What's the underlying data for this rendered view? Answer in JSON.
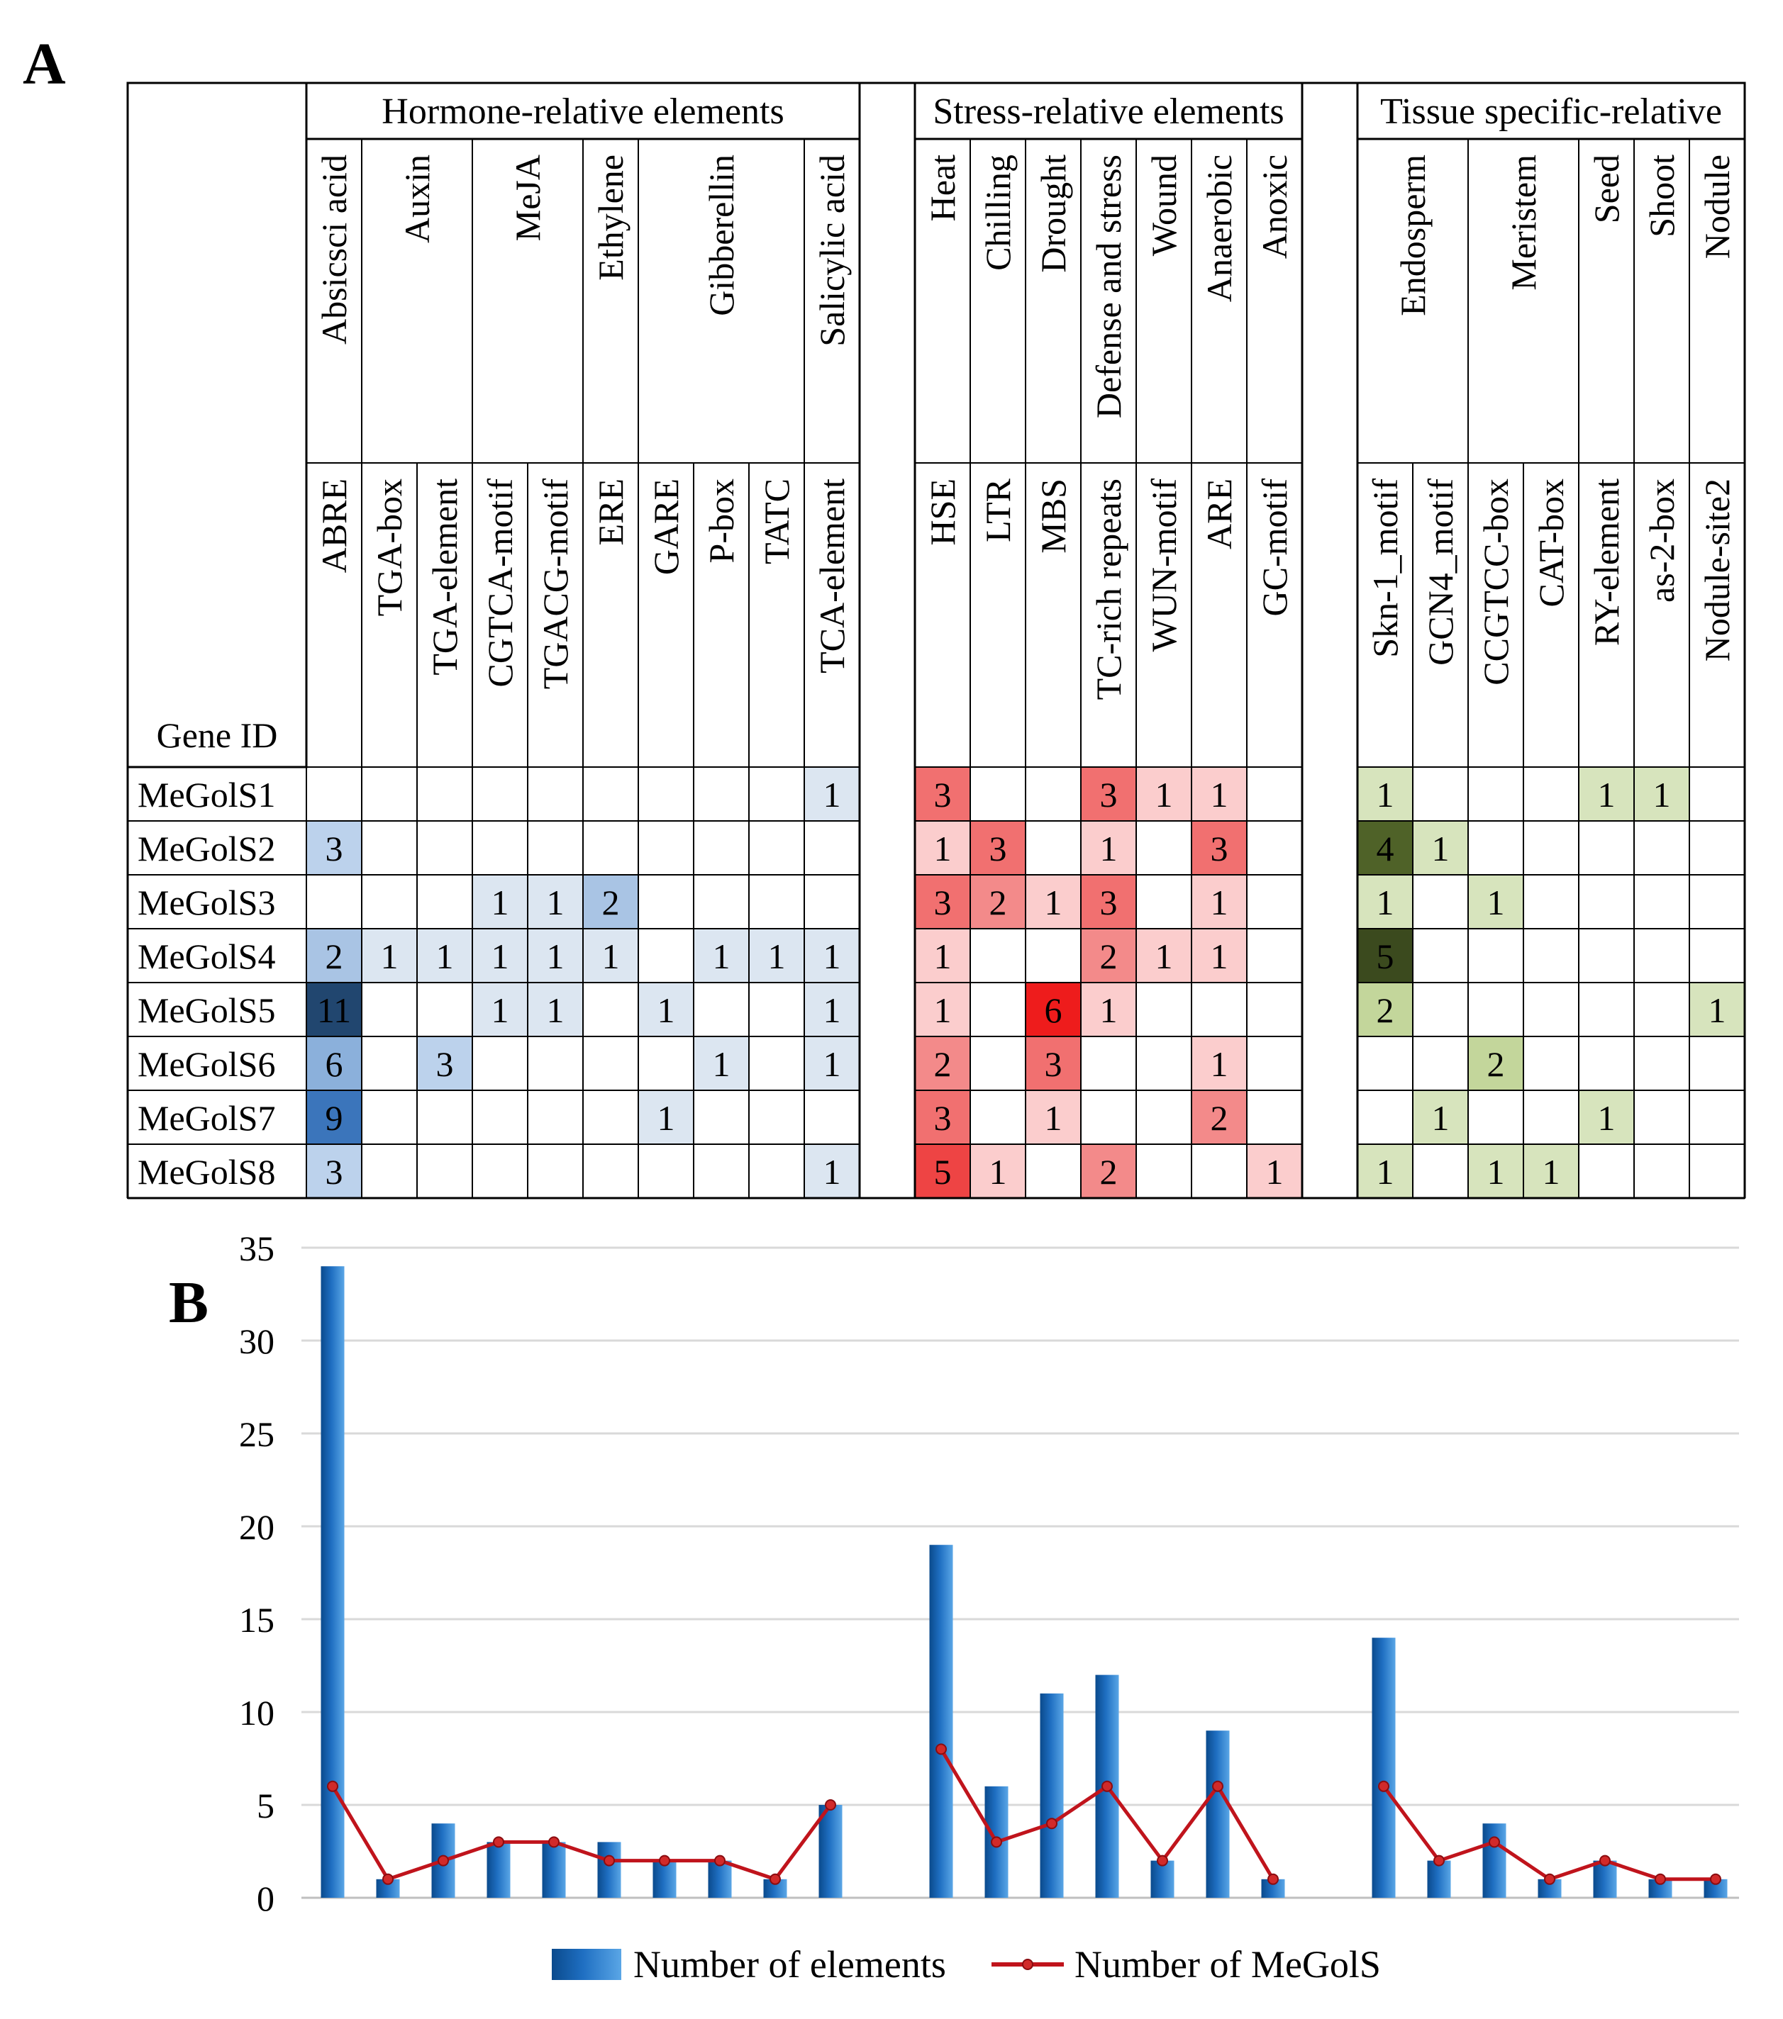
{
  "panels": {
    "a": "A",
    "b": "B"
  },
  "gene_id_label": "Gene ID",
  "groups": [
    {
      "label": "Hormone-relative elements"
    },
    {
      "label": "Stress-relative elements"
    },
    {
      "label": "Tissue specific-relative"
    }
  ],
  "categories": [
    {
      "label": "Absicsci acid",
      "group": 0,
      "span": 1
    },
    {
      "label": "Auxin",
      "group": 0,
      "span": 2
    },
    {
      "label": "MeJA",
      "group": 0,
      "span": 2
    },
    {
      "label": "Ethylene",
      "group": 0,
      "span": 1
    },
    {
      "label": "Gibberellin",
      "group": 0,
      "span": 3
    },
    {
      "label": "Salicylic acid",
      "group": 0,
      "span": 1
    },
    {
      "label": "Heat",
      "group": 1,
      "span": 1
    },
    {
      "label": "Chilling",
      "group": 1,
      "span": 1
    },
    {
      "label": "Drought",
      "group": 1,
      "span": 1
    },
    {
      "label": "Defense and stress",
      "group": 1,
      "span": 1
    },
    {
      "label": "Wound",
      "group": 1,
      "span": 1
    },
    {
      "label": "Anaerobic",
      "group": 1,
      "span": 1
    },
    {
      "label": "Anoxic",
      "group": 1,
      "span": 1
    },
    {
      "label": "Endosperm",
      "group": 2,
      "span": 2
    },
    {
      "label": "Meristem",
      "group": 2,
      "span": 2
    },
    {
      "label": "Seed",
      "group": 2,
      "span": 1
    },
    {
      "label": "Shoot",
      "group": 2,
      "span": 1
    },
    {
      "label": "Nodule",
      "group": 2,
      "span": 1
    }
  ],
  "elements": [
    "ABRE",
    "TGA-box",
    "TGA-element",
    "CGTCA-motif",
    "TGACG-motif",
    "ERE",
    "GARE",
    "P-box",
    "TATC",
    "TCA-element",
    "HSE",
    "LTR",
    "MBS",
    "TC-rich repeats",
    "WUN-motif",
    "ARE",
    "GC-motif",
    "Skn-1_motif",
    "GCN4_motif",
    "CCGTCC-box",
    "CAT-box",
    "RY-element",
    "as-2-box",
    "Nodule-site2"
  ],
  "genes": [
    {
      "id": "MeGolS1",
      "counts": [
        null,
        null,
        null,
        null,
        null,
        null,
        null,
        null,
        null,
        1,
        3,
        null,
        null,
        3,
        1,
        1,
        null,
        1,
        null,
        null,
        null,
        1,
        1,
        null
      ]
    },
    {
      "id": "MeGolS2",
      "counts": [
        3,
        null,
        null,
        null,
        null,
        null,
        null,
        null,
        null,
        null,
        1,
        3,
        null,
        1,
        null,
        3,
        null,
        4,
        1,
        null,
        null,
        null,
        null,
        null
      ]
    },
    {
      "id": "MeGolS3",
      "counts": [
        null,
        null,
        null,
        1,
        1,
        2,
        null,
        null,
        null,
        null,
        3,
        2,
        1,
        3,
        null,
        1,
        null,
        1,
        null,
        1,
        null,
        null,
        null,
        null
      ]
    },
    {
      "id": "MeGolS4",
      "counts": [
        2,
        1,
        1,
        1,
        1,
        1,
        null,
        1,
        1,
        1,
        1,
        null,
        null,
        2,
        1,
        1,
        null,
        5,
        null,
        null,
        null,
        null,
        null,
        null
      ]
    },
    {
      "id": "MeGolS5",
      "counts": [
        11,
        null,
        null,
        1,
        1,
        null,
        1,
        null,
        null,
        1,
        1,
        null,
        6,
        1,
        null,
        null,
        null,
        2,
        null,
        null,
        null,
        null,
        null,
        1
      ]
    },
    {
      "id": "MeGolS6",
      "counts": [
        6,
        null,
        3,
        null,
        null,
        null,
        null,
        1,
        null,
        1,
        2,
        null,
        3,
        null,
        null,
        1,
        null,
        null,
        null,
        2,
        null,
        null,
        null,
        null
      ]
    },
    {
      "id": "MeGolS7",
      "counts": [
        9,
        null,
        null,
        null,
        null,
        null,
        1,
        null,
        null,
        null,
        3,
        null,
        1,
        null,
        null,
        2,
        null,
        null,
        1,
        null,
        null,
        1,
        null,
        null
      ]
    },
    {
      "id": "MeGolS8",
      "counts": [
        3,
        null,
        null,
        null,
        null,
        null,
        null,
        null,
        null,
        1,
        5,
        1,
        null,
        2,
        null,
        null,
        1,
        1,
        null,
        1,
        1,
        null,
        null,
        null
      ]
    }
  ],
  "colors": {
    "hormone": [
      "#ffffff",
      "#dce6f1",
      "#a9c4e4",
      "#8db0da",
      "#8bb0db",
      "#4e86c6",
      "#3b75bb",
      "#21466f"
    ],
    "stress": [
      "#ffffff",
      "#fbcdcd",
      "#f38a8a",
      "#f17070",
      "#ef5b5b",
      "#ee4444",
      "#ee1c1c"
    ],
    "tissue": [
      "#ffffff",
      "#d7e4bd",
      "#c3d69b",
      "#76923c",
      "#4f6228",
      "#3b4a1e"
    ],
    "bar_light": "#5aa6e6",
    "bar_dark": "#0a4a8c",
    "line": "#c0141c",
    "marker": "#d12a2a",
    "grid": "#d9d9d9",
    "axis": "#bfbfbf"
  },
  "chart_data": [
    {
      "type": "heatmap",
      "title": "",
      "row_label": "Gene ID",
      "rows": [
        "MeGolS1",
        "MeGolS2",
        "MeGolS3",
        "MeGolS4",
        "MeGolS5",
        "MeGolS6",
        "MeGolS7",
        "MeGolS8"
      ],
      "columns": [
        "ABRE",
        "TGA-box",
        "TGA-element",
        "CGTCA-motif",
        "TGACG-motif",
        "ERE",
        "GARE",
        "P-box",
        "TATC",
        "TCA-element",
        "HSE",
        "LTR",
        "MBS",
        "TC-rich repeats",
        "WUN-motif",
        "ARE",
        "GC-motif",
        "Skn-1_motif",
        "GCN4_motif",
        "CCGTCC-box",
        "CAT-box",
        "RY-element",
        "as-2-box",
        "Nodule-site2"
      ],
      "note": "cell counts stored in genes[].counts"
    },
    {
      "type": "bar",
      "title": "",
      "categories": [
        "ABRE",
        "TGA-box",
        "TGA-element",
        "CGTCA-motif",
        "TGACG-motif",
        "ERE",
        "GARE",
        "P-box",
        "TATC",
        "TCA-element",
        "HSE",
        "LTR",
        "MBS",
        "TC-rich repeats",
        "WUN-motif",
        "ARE",
        "GC-motif",
        "Skn-1_motif",
        "GCN4_motif",
        "CCGTCC-box",
        "CAT-box",
        "RY-element",
        "as-2-box",
        "Nodule-site2"
      ],
      "series": [
        {
          "name": "Number of elements",
          "kind": "bar",
          "values": [
            34,
            1,
            4,
            3,
            3,
            3,
            2,
            2,
            1,
            5,
            19,
            6,
            11,
            12,
            2,
            9,
            1,
            14,
            2,
            4,
            1,
            2,
            1,
            1
          ]
        },
        {
          "name": "Number of MeGolS",
          "kind": "line",
          "values": [
            6,
            1,
            2,
            3,
            3,
            2,
            2,
            2,
            1,
            5,
            8,
            3,
            4,
            6,
            2,
            6,
            1,
            6,
            2,
            3,
            1,
            2,
            1,
            1
          ]
        }
      ],
      "yticks": [
        "0",
        "5",
        "10",
        "15",
        "20",
        "25",
        "30",
        "35"
      ],
      "ylim": [
        0,
        35
      ],
      "xlabel": "",
      "ylabel": "",
      "grid": true,
      "legend": "bottom"
    }
  ]
}
